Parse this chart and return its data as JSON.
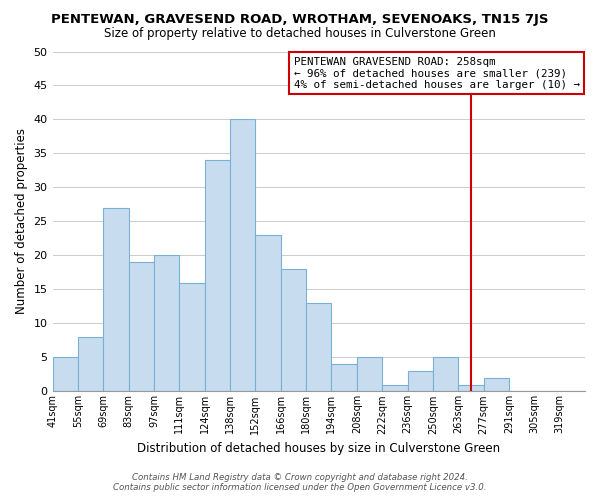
{
  "title": "PENTEWAN, GRAVESEND ROAD, WROTHAM, SEVENOAKS, TN15 7JS",
  "subtitle": "Size of property relative to detached houses in Culverstone Green",
  "xlabel": "Distribution of detached houses by size in Culverstone Green",
  "ylabel": "Number of detached properties",
  "bin_labels": [
    "41sqm",
    "55sqm",
    "69sqm",
    "83sqm",
    "97sqm",
    "111sqm",
    "124sqm",
    "138sqm",
    "152sqm",
    "166sqm",
    "180sqm",
    "194sqm",
    "208sqm",
    "222sqm",
    "236sqm",
    "250sqm",
    "263sqm",
    "277sqm",
    "291sqm",
    "305sqm",
    "319sqm"
  ],
  "bar_heights": [
    5,
    8,
    27,
    19,
    20,
    16,
    34,
    40,
    23,
    18,
    13,
    4,
    5,
    1,
    3,
    5,
    1,
    2,
    0,
    0,
    0
  ],
  "bar_color": "#c8dcf0",
  "bar_edge_color": "#7ab0d4",
  "grid_color": "#cccccc",
  "vline_color": "#cc0000",
  "ylim": [
    0,
    50
  ],
  "yticks": [
    0,
    5,
    10,
    15,
    20,
    25,
    30,
    35,
    40,
    45,
    50
  ],
  "annotation_title": "PENTEWAN GRAVESEND ROAD: 258sqm",
  "annotation_line1": "← 96% of detached houses are smaller (239)",
  "annotation_line2": "4% of semi-detached houses are larger (10) →",
  "footer_line1": "Contains HM Land Registry data © Crown copyright and database right 2024.",
  "footer_line2": "Contains public sector information licensed under the Open Government Licence v3.0.",
  "n_bars": 21,
  "vline_bar_index": 16.5
}
